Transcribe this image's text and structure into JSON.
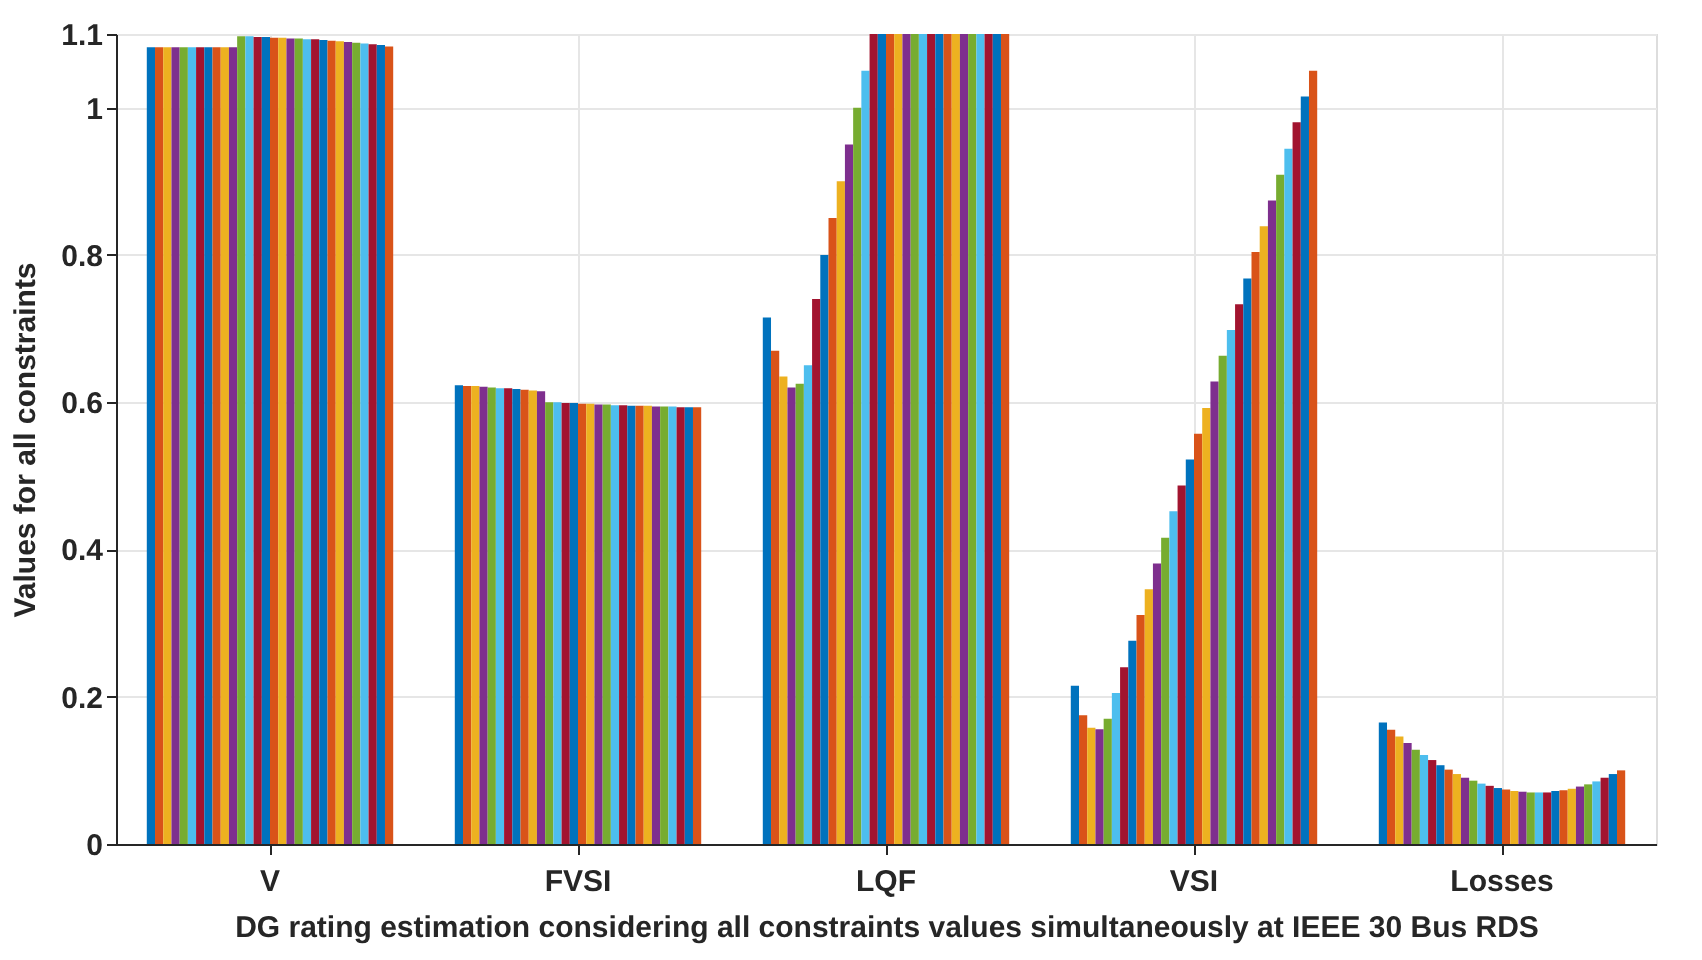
{
  "chart_data": {
    "type": "bar",
    "xlabel": "DG rating estimation considering all constraints values simultaneously at IEEE 30 Bus RDS",
    "ylabel": "Values for all constraints",
    "categories": [
      "V",
      "FVSI",
      "LQF",
      "VSI",
      "Losses"
    ],
    "ylim": [
      0,
      1.1
    ],
    "yticks": [
      0,
      0.2,
      0.4,
      0.6,
      0.8,
      1,
      1.1
    ],
    "grid": true,
    "legend": false,
    "series": [
      {
        "color": "#0072bd",
        "values": [
          1.082,
          0.623,
          0.715,
          0.215,
          0.165
        ]
      },
      {
        "color": "#d95319",
        "values": [
          1.082,
          0.622,
          0.67,
          0.175,
          0.155
        ]
      },
      {
        "color": "#edb120",
        "values": [
          1.082,
          0.622,
          0.635,
          0.158,
          0.146
        ]
      },
      {
        "color": "#7e2f8e",
        "values": [
          1.082,
          0.621,
          0.62,
          0.156,
          0.137
        ]
      },
      {
        "color": "#77ac30",
        "values": [
          1.082,
          0.62,
          0.625,
          0.17,
          0.128
        ]
      },
      {
        "color": "#4dbeee",
        "values": [
          1.082,
          0.619,
          0.65,
          0.205,
          0.121
        ]
      },
      {
        "color": "#a2142f",
        "values": [
          1.082,
          0.619,
          0.74,
          0.24,
          0.114
        ]
      },
      {
        "color": "#0072bd",
        "values": [
          1.082,
          0.618,
          0.8,
          0.276,
          0.107
        ]
      },
      {
        "color": "#d95319",
        "values": [
          1.082,
          0.617,
          0.85,
          0.311,
          0.101
        ]
      },
      {
        "color": "#edb120",
        "values": [
          1.082,
          0.616,
          0.9,
          0.346,
          0.095
        ]
      },
      {
        "color": "#7e2f8e",
        "values": [
          1.082,
          0.615,
          0.95,
          0.381,
          0.09
        ]
      },
      {
        "color": "#77ac30",
        "values": [
          1.097,
          0.6,
          1.0,
          0.416,
          0.086
        ]
      },
      {
        "color": "#4dbeee",
        "values": [
          1.097,
          0.6,
          1.05,
          0.452,
          0.082
        ]
      },
      {
        "color": "#a2142f",
        "values": [
          1.096,
          0.599,
          1.1,
          0.487,
          0.079
        ]
      },
      {
        "color": "#0072bd",
        "values": [
          1.096,
          0.599,
          1.1,
          0.522,
          0.076
        ]
      },
      {
        "color": "#d95319",
        "values": [
          1.095,
          0.598,
          1.1,
          0.557,
          0.074
        ]
      },
      {
        "color": "#edb120",
        "values": [
          1.095,
          0.598,
          1.1,
          0.592,
          0.072
        ]
      },
      {
        "color": "#7e2f8e",
        "values": [
          1.094,
          0.597,
          1.1,
          0.628,
          0.071
        ]
      },
      {
        "color": "#77ac30",
        "values": [
          1.094,
          0.597,
          1.1,
          0.663,
          0.07
        ]
      },
      {
        "color": "#4dbeee",
        "values": [
          1.093,
          0.596,
          1.1,
          0.698,
          0.07
        ]
      },
      {
        "color": "#a2142f",
        "values": [
          1.093,
          0.596,
          1.1,
          0.733,
          0.07
        ]
      },
      {
        "color": "#0072bd",
        "values": [
          1.092,
          0.595,
          1.1,
          0.768,
          0.072
        ]
      },
      {
        "color": "#d95319",
        "values": [
          1.091,
          0.595,
          1.1,
          0.804,
          0.073
        ]
      },
      {
        "color": "#edb120",
        "values": [
          1.09,
          0.595,
          1.1,
          0.839,
          0.075
        ]
      },
      {
        "color": "#7e2f8e",
        "values": [
          1.089,
          0.594,
          1.1,
          0.874,
          0.078
        ]
      },
      {
        "color": "#77ac30",
        "values": [
          1.088,
          0.594,
          1.1,
          0.909,
          0.081
        ]
      },
      {
        "color": "#4dbeee",
        "values": [
          1.087,
          0.594,
          1.1,
          0.944,
          0.085
        ]
      },
      {
        "color": "#a2142f",
        "values": [
          1.086,
          0.593,
          1.1,
          0.98,
          0.09
        ]
      },
      {
        "color": "#0072bd",
        "values": [
          1.085,
          0.593,
          1.1,
          1.015,
          0.095
        ]
      },
      {
        "color": "#d95319",
        "values": [
          1.083,
          0.593,
          1.1,
          1.05,
          0.1
        ]
      }
    ]
  }
}
